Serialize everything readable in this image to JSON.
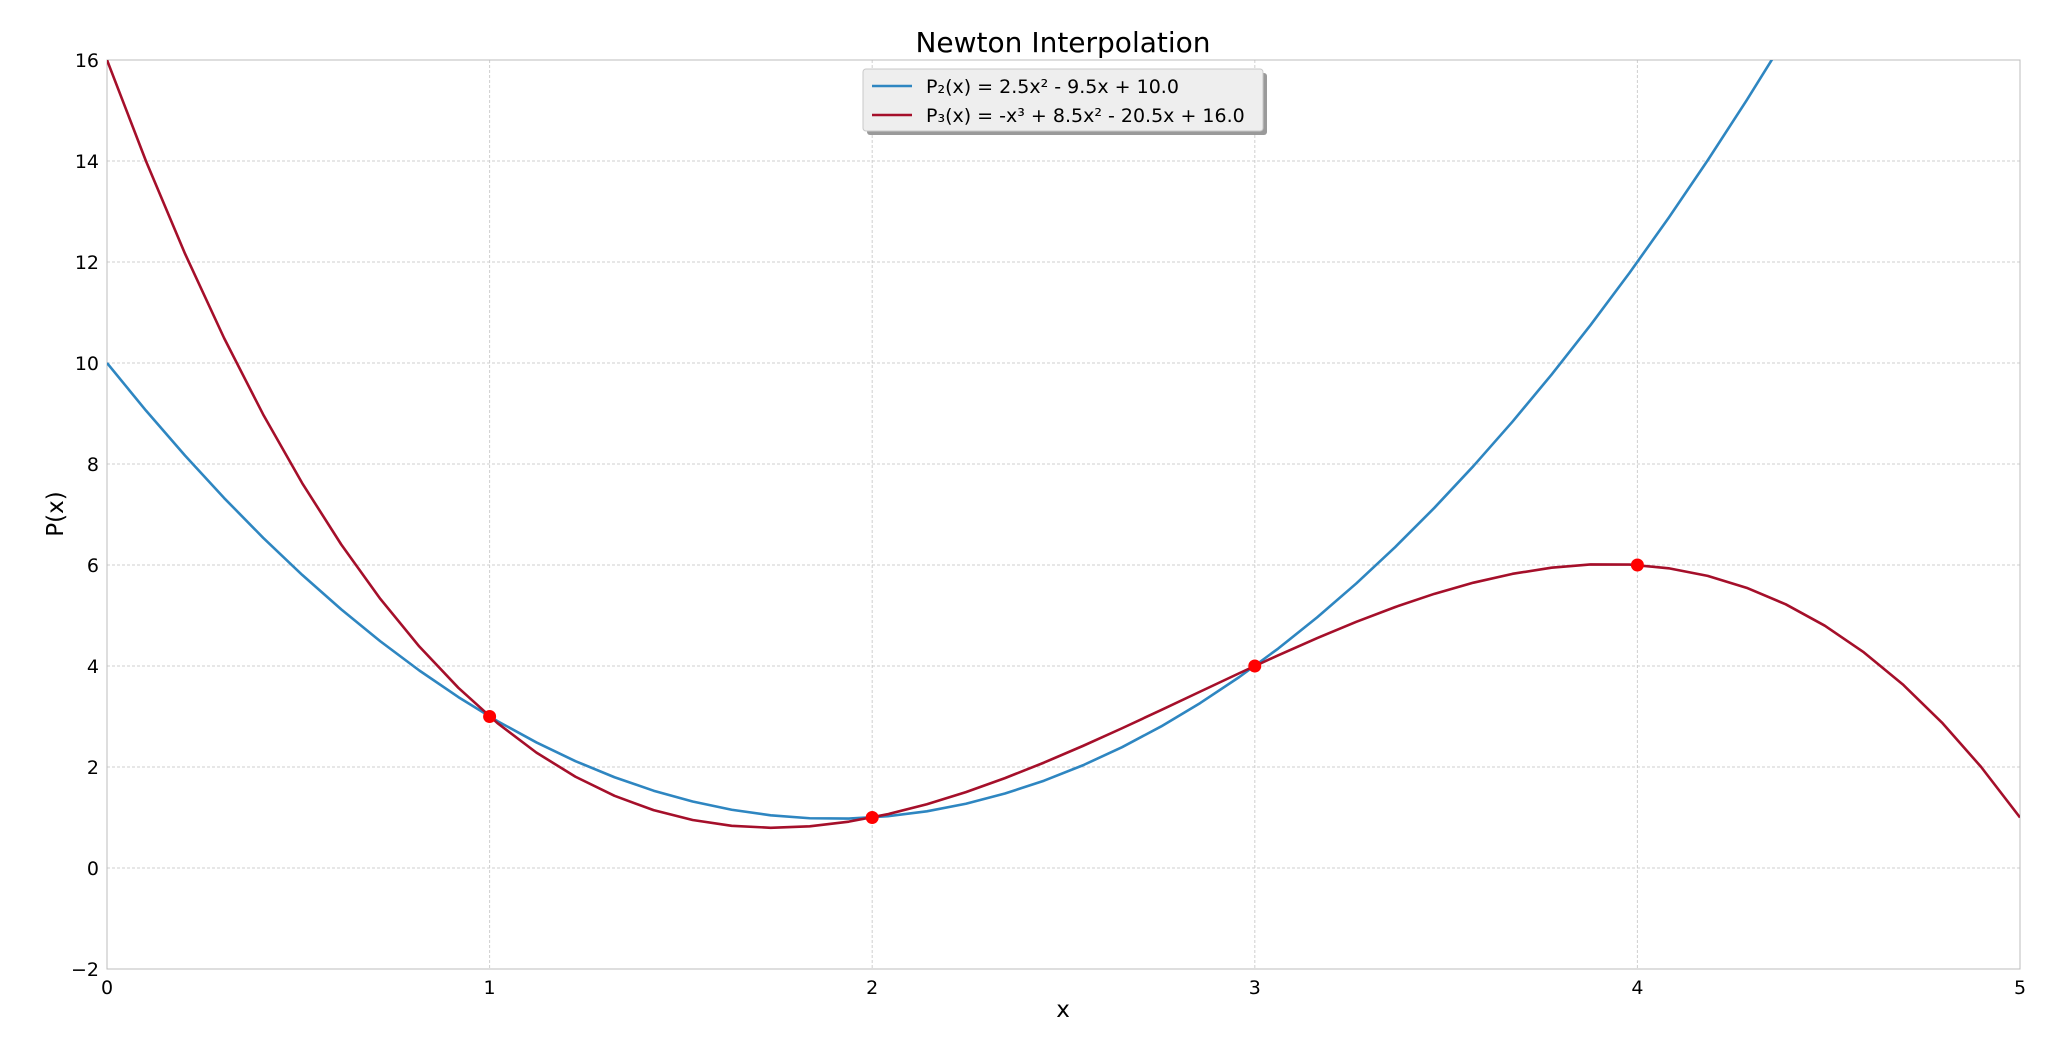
{
  "chart_data": {
    "type": "line",
    "title": "Newton Interpolation",
    "xlabel": "x",
    "ylabel": "P(x)",
    "xlim": [
      0,
      5
    ],
    "ylim": [
      -2,
      16
    ],
    "xticks": [
      0,
      1,
      2,
      3,
      4,
      5
    ],
    "yticks": [
      -2,
      0,
      2,
      4,
      6,
      8,
      10,
      12,
      14,
      16
    ],
    "xtick_labels": [
      "0",
      "1",
      "2",
      "3",
      "4",
      "5"
    ],
    "ytick_labels": [
      "−2",
      "0",
      "2",
      "4",
      "6",
      "8",
      "10",
      "12",
      "14",
      "16"
    ],
    "grid": true,
    "legend_position": "top-center",
    "series": [
      {
        "name": "P₂(x) = 2.5x² - 9.5x + 10.0",
        "color": "#2e86c1",
        "coefficients": [
          2.5,
          -9.5,
          10.0
        ]
      },
      {
        "name": "P₃(x) = -x³ + 8.5x² - 20.5x + 16.0",
        "color": "#a50f2a",
        "coefficients": [
          -1,
          8.5,
          -20.5,
          16.0
        ]
      }
    ],
    "points": {
      "color": "#ff0000",
      "x": [
        1,
        2,
        3,
        4
      ],
      "y": [
        3,
        1,
        4,
        6
      ]
    }
  }
}
